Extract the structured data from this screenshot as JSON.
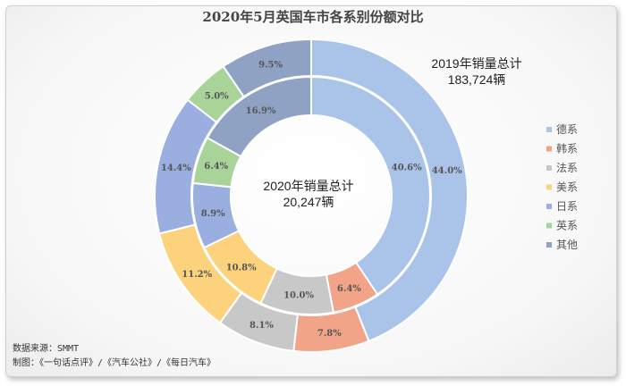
{
  "chart_data": {
    "type": "donut",
    "title": "2020年5月英国车市各系别份额对比",
    "categories": [
      "德系",
      "韩系",
      "法系",
      "美系",
      "日系",
      "英系",
      "其他"
    ],
    "series": [
      {
        "total_label": "2019年销量总计",
        "total_value": "183,724辆",
        "values": [
          44.0,
          7.8,
          8.1,
          11.2,
          14.4,
          5.0,
          9.5
        ],
        "labels": [
          "44.0%",
          "7.8%",
          "8.1%",
          "11.2%",
          "14.4%",
          "5.0%",
          "9.5%"
        ]
      },
      {
        "total_label": "2020年销量总计",
        "total_value": "20,247辆",
        "values": [
          40.6,
          6.4,
          10.0,
          10.8,
          8.9,
          6.4,
          16.9
        ],
        "labels": [
          "40.6%",
          "6.4%",
          "10.0%",
          "10.8%",
          "8.9%",
          "6.4%",
          "16.9%"
        ]
      }
    ],
    "colors": [
      "#a9c4e8",
      "#f2a488",
      "#c8c8c8",
      "#fcd27c",
      "#9aaee0",
      "#a8d49a",
      "#8fa2c4"
    ],
    "legend_position": "right"
  },
  "footer": {
    "source": "数据来源：SMMT",
    "credit": "制图：《一句话点评》/《汽车公社》/《每日汽车》"
  }
}
